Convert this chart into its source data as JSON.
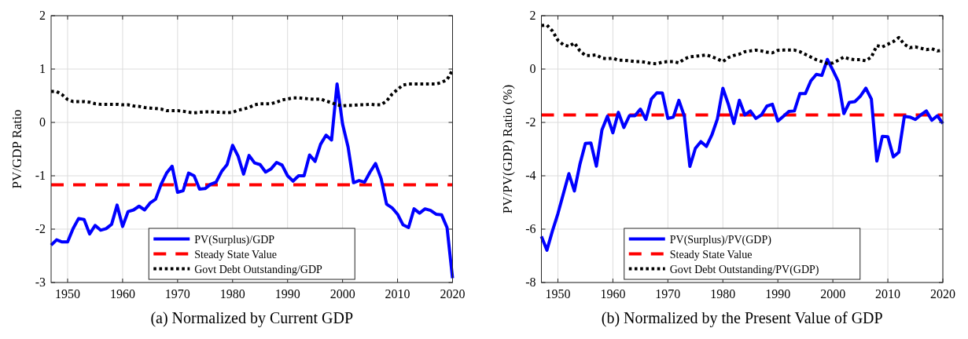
{
  "chart_data": [
    {
      "type": "line",
      "title": "(a) Normalized by Current GDP",
      "ylabel": "PV/GDP Ratio",
      "x": [
        1947,
        1948,
        1949,
        1950,
        1951,
        1952,
        1953,
        1954,
        1955,
        1956,
        1957,
        1958,
        1959,
        1960,
        1961,
        1962,
        1963,
        1964,
        1965,
        1966,
        1967,
        1968,
        1969,
        1970,
        1971,
        1972,
        1973,
        1974,
        1975,
        1976,
        1977,
        1978,
        1979,
        1980,
        1981,
        1982,
        1983,
        1984,
        1985,
        1986,
        1987,
        1988,
        1989,
        1990,
        1991,
        1992,
        1993,
        1994,
        1995,
        1996,
        1997,
        1998,
        1999,
        2000,
        2001,
        2002,
        2003,
        2004,
        2005,
        2006,
        2007,
        2008,
        2009,
        2010,
        2011,
        2012,
        2013,
        2014,
        2015,
        2016,
        2017,
        2018,
        2019,
        2020
      ],
      "series": [
        {
          "name": "PV(Surplus)/GDP",
          "color": "#0000ff",
          "line_style": "solid",
          "values": [
            -2.3,
            -2.2,
            -2.24,
            -2.24,
            -1.99,
            -1.8,
            -1.82,
            -2.09,
            -1.93,
            -2.02,
            -1.99,
            -1.91,
            -1.55,
            -1.95,
            -1.67,
            -1.64,
            -1.57,
            -1.64,
            -1.51,
            -1.44,
            -1.16,
            -0.95,
            -0.82,
            -1.31,
            -1.28,
            -0.95,
            -1.0,
            -1.25,
            -1.24,
            -1.16,
            -1.12,
            -0.92,
            -0.79,
            -0.43,
            -0.63,
            -0.97,
            -0.62,
            -0.76,
            -0.79,
            -0.93,
            -0.87,
            -0.75,
            -0.8,
            -1.0,
            -1.1,
            -1.0,
            -1.0,
            -0.61,
            -0.73,
            -0.41,
            -0.24,
            -0.33,
            0.72,
            -0.03,
            -0.46,
            -1.13,
            -1.09,
            -1.12,
            -0.93,
            -0.77,
            -1.05,
            -1.53,
            -1.6,
            -1.72,
            -1.92,
            -1.97,
            -1.62,
            -1.7,
            -1.62,
            -1.65,
            -1.72,
            -1.73,
            -1.97,
            -2.92
          ]
        },
        {
          "name": "Govt Debt Outstanding/GDP",
          "color": "#000000",
          "line_style": "dotted",
          "values": [
            0.58,
            0.58,
            0.52,
            0.43,
            0.39,
            0.39,
            0.39,
            0.38,
            0.35,
            0.34,
            0.34,
            0.34,
            0.34,
            0.33,
            0.33,
            0.31,
            0.3,
            0.28,
            0.27,
            0.26,
            0.25,
            0.22,
            0.22,
            0.22,
            0.21,
            0.19,
            0.18,
            0.19,
            0.2,
            0.2,
            0.19,
            0.19,
            0.18,
            0.19,
            0.23,
            0.25,
            0.28,
            0.33,
            0.35,
            0.35,
            0.35,
            0.38,
            0.42,
            0.44,
            0.46,
            0.46,
            0.45,
            0.44,
            0.43,
            0.44,
            0.4,
            0.37,
            0.33,
            0.31,
            0.32,
            0.32,
            0.33,
            0.33,
            0.34,
            0.33,
            0.33,
            0.4,
            0.53,
            0.62,
            0.7,
            0.72,
            0.72,
            0.72,
            0.72,
            0.72,
            0.72,
            0.75,
            0.8,
            0.98
          ]
        }
      ],
      "ref_lines": [
        {
          "axis": "y",
          "value": -1.17,
          "label": "Steady State Value",
          "color": "#ff0000",
          "line_style": "dashed"
        }
      ],
      "xlim": [
        1947,
        2020
      ],
      "xticks": [
        1950,
        1960,
        1970,
        1980,
        1990,
        2000,
        2010,
        2020
      ],
      "ylim": [
        -3,
        2
      ],
      "yticks": [
        -3,
        -2,
        -1,
        0,
        1,
        2
      ],
      "grid": true,
      "legend": "bottom"
    },
    {
      "type": "line",
      "title": "(b) Normalized by the Present Value of GDP",
      "ylabel": "PV/PV(GDP) Ratio (%)",
      "x": [
        1947,
        1948,
        1949,
        1950,
        1951,
        1952,
        1953,
        1954,
        1955,
        1956,
        1957,
        1958,
        1959,
        1960,
        1961,
        1962,
        1963,
        1964,
        1965,
        1966,
        1967,
        1968,
        1969,
        1970,
        1971,
        1972,
        1973,
        1974,
        1975,
        1976,
        1977,
        1978,
        1979,
        1980,
        1981,
        1982,
        1983,
        1984,
        1985,
        1986,
        1987,
        1988,
        1989,
        1990,
        1991,
        1992,
        1993,
        1994,
        1995,
        1996,
        1997,
        1998,
        1999,
        2000,
        2001,
        2002,
        2003,
        2004,
        2005,
        2006,
        2007,
        2008,
        2009,
        2010,
        2011,
        2012,
        2013,
        2014,
        2015,
        2016,
        2017,
        2018,
        2019,
        2020
      ],
      "series": [
        {
          "name": "PV(Surplus)/PV(GDP)",
          "color": "#0000ff",
          "line_style": "solid",
          "values": [
            -6.27,
            -6.79,
            -6.07,
            -5.42,
            -4.67,
            -3.92,
            -4.57,
            -3.57,
            -2.79,
            -2.77,
            -3.64,
            -2.29,
            -1.77,
            -2.39,
            -1.62,
            -2.19,
            -1.75,
            -1.75,
            -1.5,
            -1.89,
            -1.12,
            -0.89,
            -0.9,
            -1.85,
            -1.8,
            -1.17,
            -1.77,
            -3.65,
            -2.97,
            -2.72,
            -2.9,
            -2.47,
            -1.87,
            -0.72,
            -1.32,
            -2.04,
            -1.17,
            -1.72,
            -1.57,
            -1.85,
            -1.72,
            -1.39,
            -1.32,
            -1.95,
            -1.77,
            -1.59,
            -1.57,
            -0.92,
            -0.92,
            -0.44,
            -0.2,
            -0.24,
            0.36,
            -0.04,
            -0.47,
            -1.67,
            -1.25,
            -1.22,
            -1.02,
            -0.72,
            -1.12,
            -3.45,
            -2.52,
            -2.54,
            -3.29,
            -3.12,
            -1.77,
            -1.8,
            -1.89,
            -1.72,
            -1.57,
            -1.92,
            -1.75,
            -2.04
          ]
        },
        {
          "name": "Govt Debt Outstanding/PV(GDP)",
          "color": "#000000",
          "line_style": "dotted",
          "values": [
            1.63,
            1.65,
            1.43,
            1.08,
            0.91,
            0.85,
            0.98,
            0.68,
            0.51,
            0.51,
            0.53,
            0.41,
            0.38,
            0.41,
            0.33,
            0.33,
            0.31,
            0.28,
            0.28,
            0.25,
            0.21,
            0.2,
            0.26,
            0.28,
            0.28,
            0.23,
            0.38,
            0.46,
            0.48,
            0.5,
            0.53,
            0.46,
            0.38,
            0.28,
            0.43,
            0.51,
            0.56,
            0.65,
            0.68,
            0.71,
            0.68,
            0.63,
            0.61,
            0.7,
            0.71,
            0.71,
            0.71,
            0.65,
            0.55,
            0.45,
            0.35,
            0.28,
            0.21,
            0.23,
            0.33,
            0.45,
            0.38,
            0.35,
            0.35,
            0.31,
            0.45,
            0.88,
            0.83,
            0.93,
            1.03,
            1.18,
            0.93,
            0.8,
            0.83,
            0.78,
            0.73,
            0.76,
            0.68,
            0.71
          ]
        }
      ],
      "ref_lines": [
        {
          "axis": "y",
          "value": -1.72,
          "label": "Steady State Value",
          "color": "#ff0000",
          "line_style": "dashed"
        }
      ],
      "xlim": [
        1947,
        2020
      ],
      "xticks": [
        1950,
        1960,
        1970,
        1980,
        1990,
        2000,
        2010,
        2020
      ],
      "ylim": [
        -8,
        2
      ],
      "yticks": [
        -8,
        -6,
        -4,
        -2,
        0,
        2
      ],
      "grid": true,
      "legend": "bottom"
    }
  ]
}
